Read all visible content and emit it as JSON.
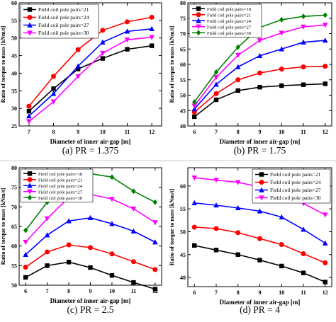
{
  "chart_data": [
    {
      "type": "line",
      "caption": "(a) PR = 1.375",
      "xlabel": "Diameter of inner air-gap [m]",
      "ylabel": "Ratio of torque to mass [kNm/t]",
      "x": [
        7,
        8,
        9,
        10,
        11,
        12
      ],
      "xlim": [
        6.6,
        12.4
      ],
      "ylim": [
        25,
        60
      ],
      "xticks": [
        7,
        8,
        9,
        10,
        11,
        12
      ],
      "yticks": [
        25,
        30,
        35,
        40,
        45,
        50,
        55,
        60
      ],
      "legend_position": "top-left",
      "series": [
        {
          "name": "Field coil pole pairs=21",
          "color": "#000000",
          "marker": "square",
          "values": [
            29.2,
            35.6,
            41.2,
            44.2,
            46.8,
            47.8
          ]
        },
        {
          "name": "Field coil pole pairs=24",
          "color": "#ff0000",
          "marker": "circle",
          "values": [
            30.6,
            39.1,
            46.7,
            52.2,
            54.6,
            55.9
          ]
        },
        {
          "name": "Field coil pole pairs=27",
          "color": "#0000ff",
          "marker": "triangle",
          "values": [
            27.8,
            34.2,
            42.0,
            48.8,
            51.9,
            52.6
          ]
        },
        {
          "name": "Field coil pole pairs=30",
          "color": "#ff00ff",
          "marker": "triangle-down",
          "values": [
            26.3,
            31.9,
            39.1,
            45.7,
            49.5,
            50.2
          ]
        }
      ]
    },
    {
      "type": "line",
      "caption": "(b) PR = 1.75",
      "xlabel": "Diameter of inner air-gap [m]",
      "ylabel": "Ratio of torque to mass [kNm/t]",
      "x": [
        6,
        7,
        8,
        9,
        10,
        11,
        12
      ],
      "xlim": [
        5.7,
        12.3
      ],
      "ylim": [
        40,
        80
      ],
      "xticks": [
        6,
        7,
        8,
        9,
        10,
        11,
        12
      ],
      "yticks": [
        40,
        45,
        50,
        55,
        60,
        65,
        70,
        75,
        80
      ],
      "legend_position": "top-left",
      "series": [
        {
          "name": "Field coil pole pairs=18",
          "color": "#000000",
          "marker": "square",
          "values": [
            43.0,
            48.5,
            51.5,
            52.6,
            53.1,
            53.4,
            53.7
          ]
        },
        {
          "name": "Field coil pole pairs=21",
          "color": "#ff0000",
          "marker": "circle",
          "values": [
            44.5,
            50.5,
            55.0,
            57.2,
            58.5,
            59.2,
            59.4
          ]
        },
        {
          "name": "Field coil pole pairs=24",
          "color": "#0000ff",
          "marker": "triangle",
          "values": [
            45.5,
            53.5,
            59.2,
            62.8,
            65.0,
            67.2,
            67.8
          ]
        },
        {
          "name": "Field coil pole pairs=27",
          "color": "#ff00ff",
          "marker": "triangle-down",
          "values": [
            46.5,
            55.8,
            63.0,
            67.8,
            70.2,
            72.2,
            72.8
          ]
        },
        {
          "name": "Field coil pole pairs=30",
          "color": "#008000",
          "marker": "diamond",
          "values": [
            47.8,
            57.5,
            65.6,
            72.0,
            74.5,
            75.6,
            76.0
          ]
        }
      ]
    },
    {
      "type": "line",
      "caption": "(c) PR = 2.5",
      "xlabel": "Diameter of inner air-gap [m]",
      "ylabel": "Ratio of torque to mass [kNm/t]",
      "x": [
        6,
        7,
        8,
        9,
        10,
        11,
        12
      ],
      "xlim": [
        5.7,
        12.3
      ],
      "ylim": [
        50,
        80
      ],
      "xticks": [
        6,
        7,
        8,
        9,
        10,
        11,
        12
      ],
      "yticks": [
        50,
        55,
        60,
        65,
        70,
        75,
        80
      ],
      "legend_position": "top-left",
      "series": [
        {
          "name": "Field coil pole pairs=18",
          "color": "#000000",
          "marker": "square",
          "values": [
            52.0,
            55.0,
            55.9,
            54.5,
            52.5,
            50.7,
            49.0
          ]
        },
        {
          "name": "Field coil pole pairs=21",
          "color": "#ff0000",
          "marker": "circle",
          "values": [
            54.6,
            58.5,
            60.3,
            59.6,
            58.0,
            56.0,
            54.0
          ]
        },
        {
          "name": "Field coil pole pairs=24",
          "color": "#0000ff",
          "marker": "triangle",
          "values": [
            57.8,
            62.8,
            66.4,
            67.2,
            65.7,
            63.8,
            61.0
          ]
        },
        {
          "name": "Field coil pole pairs=27",
          "color": "#ff00ff",
          "marker": "triangle-down",
          "values": [
            61.0,
            67.0,
            72.4,
            73.2,
            72.0,
            69.5,
            66.0
          ]
        },
        {
          "name": "Field coil pole pairs=30",
          "color": "#008000",
          "marker": "diamond",
          "values": [
            64.0,
            71.2,
            76.5,
            78.5,
            77.6,
            74.0,
            71.2
          ]
        }
      ]
    },
    {
      "type": "line",
      "caption": "(d) PR = 4",
      "xlabel": "Diameter of inner air-gap [m]",
      "ylabel": "Ratio of torque to mass [kNm/t]",
      "x": [
        6,
        7,
        8,
        9,
        10,
        11,
        12
      ],
      "xlim": [
        5.7,
        12.3
      ],
      "ylim": [
        38,
        64
      ],
      "xticks": [
        6,
        7,
        8,
        9,
        10,
        11,
        12
      ],
      "yticks": [
        40,
        45,
        50,
        55,
        60
      ],
      "legend_position": "top-right",
      "series": [
        {
          "name": "Field coil pole pairs=21",
          "color": "#000000",
          "marker": "square",
          "values": [
            47.0,
            46.0,
            45.0,
            43.8,
            42.5,
            41.0,
            39.0
          ]
        },
        {
          "name": "Field coil pole pairs=24",
          "color": "#ff0000",
          "marker": "circle",
          "values": [
            51.0,
            50.7,
            49.8,
            48.5,
            47.2,
            45.2,
            43.2
          ]
        },
        {
          "name": "Field coil pole pairs=27",
          "color": "#0000ff",
          "marker": "triangle",
          "values": [
            56.3,
            55.8,
            55.2,
            54.5,
            53.2,
            50.5,
            47.5
          ]
        },
        {
          "name": "Field coil pole pairs=30",
          "color": "#ff00ff",
          "marker": "triangle-down",
          "values": [
            61.8,
            61.3,
            60.8,
            59.8,
            58.5,
            56.2,
            53.7
          ]
        }
      ]
    }
  ]
}
